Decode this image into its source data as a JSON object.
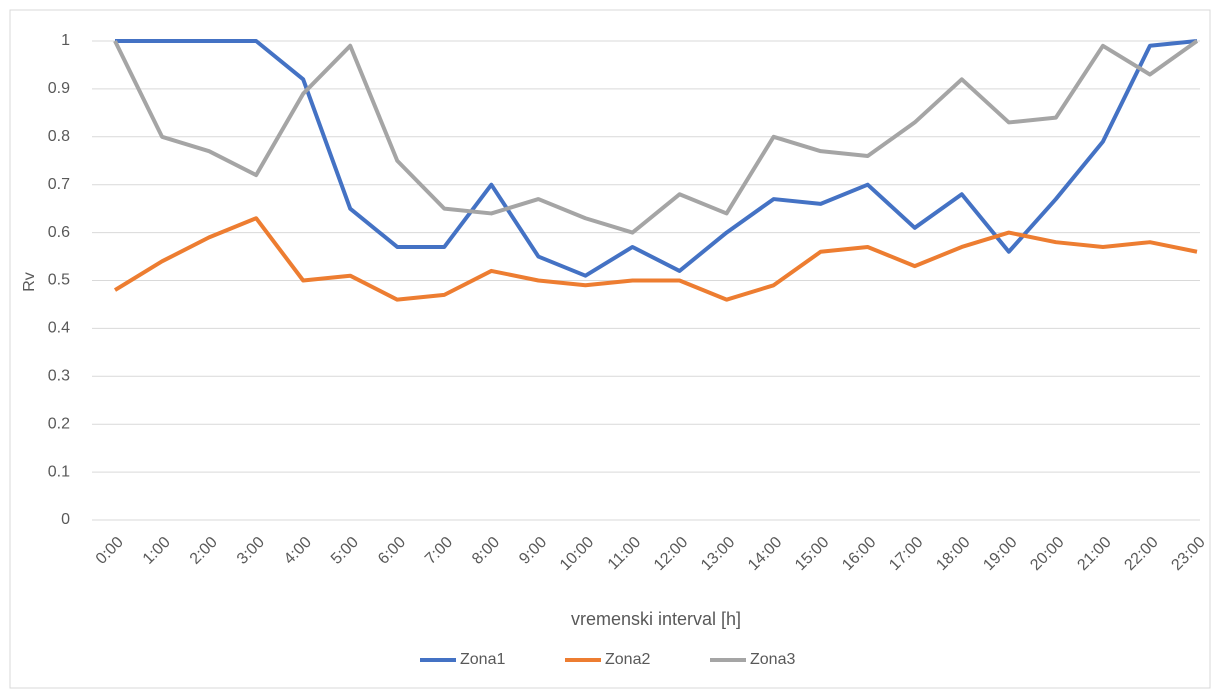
{
  "chart_data": {
    "type": "line",
    "x_label": "vremenski interval [h]",
    "y_label": "Rv",
    "categories": [
      "0:00",
      "1:00",
      "2:00",
      "3:00",
      "4:00",
      "5:00",
      "6:00",
      "7:00",
      "8:00",
      "9:00",
      "10:00",
      "11:00",
      "12:00",
      "13:00",
      "14:00",
      "15:00",
      "16:00",
      "17:00",
      "18:00",
      "19:00",
      "20:00",
      "21:00",
      "22:00",
      "23:00"
    ],
    "series": [
      {
        "name": "Zona1",
        "color": "#4472c4",
        "values": [
          1,
          1,
          1,
          1,
          0.92,
          0.65,
          0.57,
          0.57,
          0.7,
          0.55,
          0.51,
          0.57,
          0.52,
          0.6,
          0.67,
          0.66,
          0.7,
          0.61,
          0.68,
          0.56,
          0.67,
          0.79,
          0.99,
          1
        ]
      },
      {
        "name": "Zona2",
        "color": "#ed7d31",
        "values": [
          0.48,
          0.54,
          0.59,
          0.63,
          0.5,
          0.51,
          0.46,
          0.47,
          0.52,
          0.5,
          0.49,
          0.5,
          0.5,
          0.46,
          0.49,
          0.56,
          0.57,
          0.53,
          0.57,
          0.6,
          0.58,
          0.57,
          0.58,
          0.56
        ]
      },
      {
        "name": "Zona3",
        "color": "#a5a5a5",
        "values": [
          1,
          0.8,
          0.77,
          0.72,
          0.89,
          0.99,
          0.75,
          0.65,
          0.64,
          0.67,
          0.63,
          0.6,
          0.68,
          0.64,
          0.8,
          0.77,
          0.76,
          0.83,
          0.92,
          0.83,
          0.84,
          0.99,
          0.93,
          1
        ]
      }
    ],
    "ylim": [
      0,
      1
    ],
    "yticks": [
      0,
      0.1,
      0.2,
      0.3,
      0.4,
      0.5,
      0.6,
      0.7,
      0.8,
      0.9,
      1
    ],
    "grid": true,
    "legend": "bottom"
  }
}
